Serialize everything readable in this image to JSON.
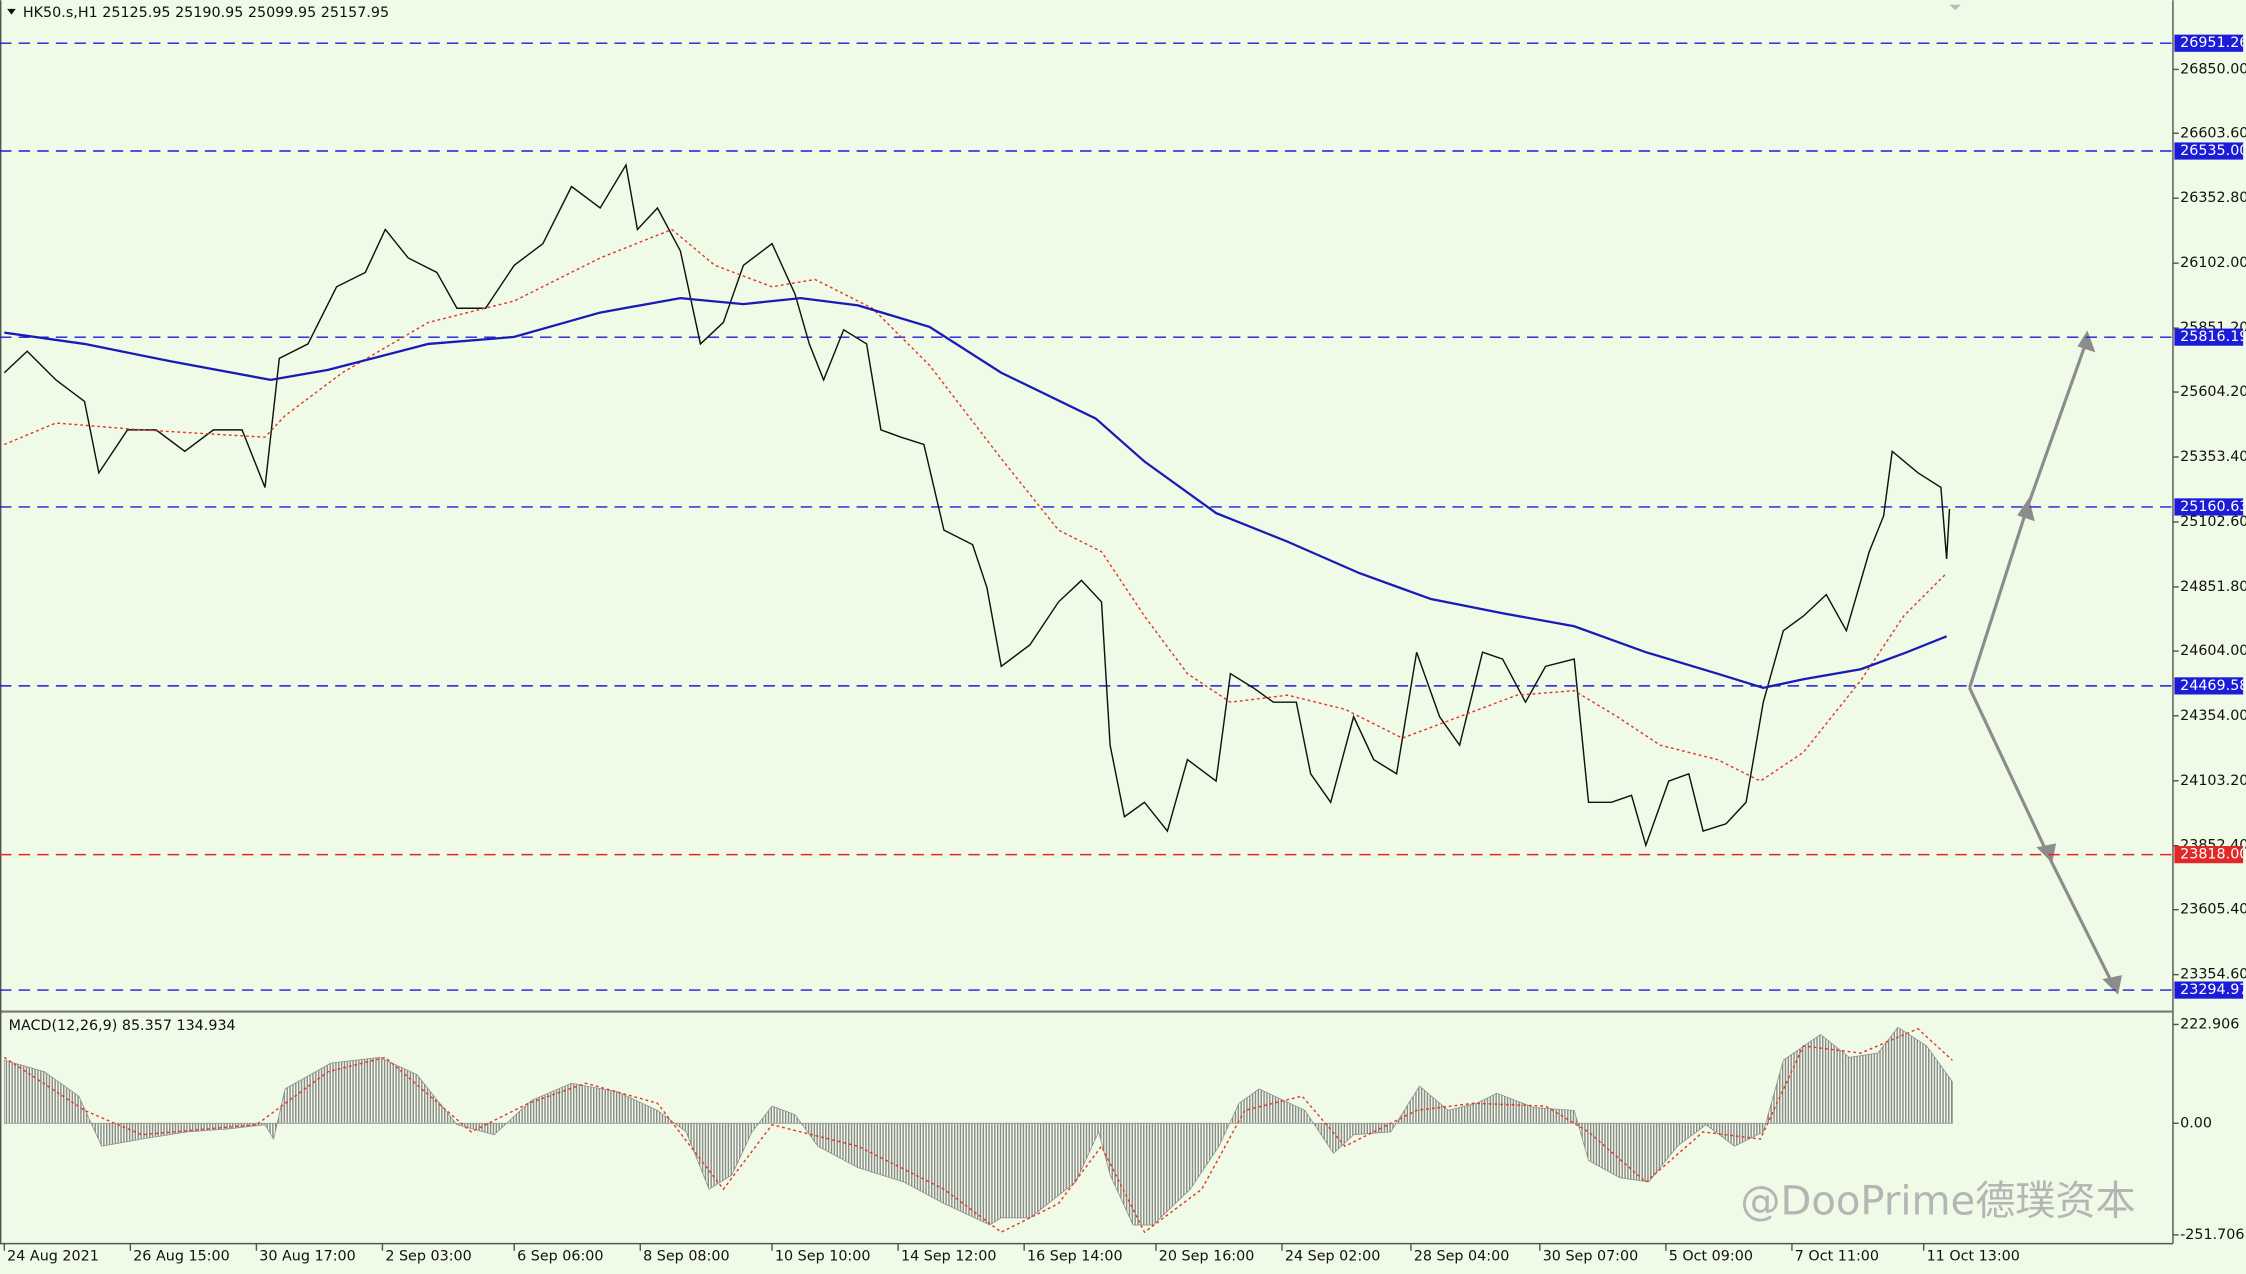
{
  "chart_data": [
    {
      "type": "line",
      "title": "HK50.s,H1  25125.95 25190.95 25099.95 25157.95",
      "watermark": "@DooPrime德璞资本",
      "xlim": [
        -1.5,
        757
      ],
      "ylim": [
        23212,
        27117
      ],
      "xticks": [
        {
          "value": 0,
          "label": "24 Aug 2021"
        },
        {
          "value": 44,
          "label": "26 Aug 15:00"
        },
        {
          "value": 88,
          "label": "30 Aug 17:00"
        },
        {
          "value": 132,
          "label": "2 Sep 03:00"
        },
        {
          "value": 178,
          "label": "6 Sep 06:00"
        },
        {
          "value": 222,
          "label": "8 Sep 08:00"
        },
        {
          "value": 268,
          "label": "10 Sep 10:00"
        },
        {
          "value": 312,
          "label": "14 Sep 12:00"
        },
        {
          "value": 356,
          "label": "16 Sep 14:00"
        },
        {
          "value": 402,
          "label": "20 Sep 16:00"
        },
        {
          "value": 446,
          "label": "24 Sep 02:00"
        },
        {
          "value": 491,
          "label": "28 Sep 04:00"
        },
        {
          "value": 536,
          "label": "30 Sep 07:00"
        },
        {
          "value": 580,
          "label": "5 Oct 09:00"
        },
        {
          "value": 624,
          "label": "7 Oct 11:00"
        },
        {
          "value": 670,
          "label": "11 Oct 13:00"
        }
      ],
      "yticks": [
        {
          "value": 26850,
          "label": "26850.00"
        },
        {
          "value": 26603.6,
          "label": "26603.60"
        },
        {
          "value": 26352.8,
          "label": "26352.80"
        },
        {
          "value": 26102,
          "label": "26102.00"
        },
        {
          "value": 25851.2,
          "label": "25851.20"
        },
        {
          "value": 25604.2,
          "label": "25604.20"
        },
        {
          "value": 25353.4,
          "label": "25353.40"
        },
        {
          "value": 25102.6,
          "label": "25102.60"
        },
        {
          "value": 24851.8,
          "label": "24851.80"
        },
        {
          "value": 24604,
          "label": "24604.00"
        },
        {
          "value": 24354,
          "label": "24354.00"
        },
        {
          "value": 24103.2,
          "label": "24103.20"
        },
        {
          "value": 23852.4,
          "label": "23852.40"
        },
        {
          "value": 23605.4,
          "label": "23605.40"
        },
        {
          "value": 23354.6,
          "label": "23354.60"
        }
      ],
      "levels": [
        {
          "value": 26951.26,
          "color": "#1c1cd8"
        },
        {
          "value": 26535,
          "label": "26535.00",
          "color": "#1c1cd8"
        },
        {
          "value": 25816.19,
          "color": "#1c1cd8"
        },
        {
          "value": 25160.63,
          "color": "#1c1cd8"
        },
        {
          "value": 24469.58,
          "color": "#1c1cd8"
        },
        {
          "value": 23818,
          "label": "23818.00",
          "color": "#e02828"
        },
        {
          "value": 23294.97,
          "color": "#1c1cd8"
        }
      ],
      "series": [
        {
          "type": "line",
          "color": "#111111",
          "x": [
            0,
            8,
            18,
            28,
            33,
            43,
            53,
            63,
            73,
            83,
            91,
            96,
            106,
            116,
            126,
            133,
            141,
            151,
            158,
            168,
            178,
            188,
            198,
            208,
            217,
            221,
            228,
            236,
            243,
            251,
            258,
            268,
            276,
            281,
            286,
            293,
            301,
            306,
            313,
            321,
            328,
            338,
            343,
            348,
            358,
            368,
            376,
            383,
            386,
            391,
            398,
            406,
            413,
            423,
            428,
            436,
            443,
            451,
            456,
            463,
            471,
            478,
            486,
            493,
            501,
            508,
            516,
            523,
            531,
            538,
            548,
            553,
            561,
            568,
            573,
            581,
            588,
            593,
            601,
            608,
            614,
            621,
            628,
            636,
            643,
            651,
            656,
            659,
            668,
            676,
            678,
            679
          ],
          "values": [
            25679,
            25762,
            25651,
            25568,
            25292,
            25458,
            25458,
            25375,
            25458,
            25458,
            25236,
            25734,
            25790,
            26011,
            26066,
            26232,
            26122,
            26066,
            25928,
            25928,
            26094,
            26177,
            26398,
            26315,
            26481,
            26232,
            26315,
            26149,
            25790,
            25873,
            26094,
            26177,
            25983,
            25790,
            25651,
            25845,
            25790,
            25458,
            25430,
            25402,
            25071,
            25015,
            24849,
            24545,
            24628,
            24794,
            24877,
            24794,
            24241,
            23964,
            24020,
            23909,
            24185,
            24102,
            24517,
            24462,
            24407,
            24407,
            24130,
            24020,
            24351,
            24185,
            24130,
            24600,
            24351,
            24241,
            24600,
            24573,
            24407,
            24545,
            24573,
            24020,
            24020,
            24047,
            23854,
            24102,
            24130,
            23909,
            23937,
            24020,
            24407,
            24683,
            24739,
            24822,
            24683,
            24988,
            25126,
            25375,
            25292,
            25236,
            24960,
            25153
          ]
        },
        {
          "type": "line",
          "color": "#e23a2a",
          "style": "dotted",
          "x": [
            0,
            18,
            48,
            91,
            98,
            118,
            148,
            178,
            208,
            233,
            248,
            268,
            283,
            303,
            323,
            348,
            368,
            383,
            398,
            413,
            428,
            448,
            468,
            488,
            508,
            528,
            548,
            563,
            578,
            598,
            613,
            628,
            648,
            663,
            678
          ],
          "values": [
            25402,
            25485,
            25458,
            25430,
            25513,
            25679,
            25873,
            25956,
            26122,
            26232,
            26094,
            26011,
            26039,
            25928,
            25707,
            25347,
            25071,
            24988,
            24739,
            24517,
            24407,
            24434,
            24379,
            24268,
            24351,
            24434,
            24451,
            24351,
            24241,
            24185,
            24102,
            24213,
            24490,
            24739,
            24905
          ]
        },
        {
          "type": "line",
          "color": "#1a1ab8",
          "width": 1.6,
          "x": [
            0,
            28,
            58,
            93,
            113,
            148,
            178,
            208,
            236,
            258,
            278,
            298,
            323,
            348,
            381,
            398,
            423,
            448,
            473,
            498,
            523,
            548,
            573,
            598,
            614,
            628,
            648,
            663,
            678
          ],
          "values": [
            25834,
            25790,
            25723,
            25651,
            25690,
            25790,
            25817,
            25911,
            25967,
            25944,
            25967,
            25939,
            25856,
            25679,
            25502,
            25336,
            25137,
            25026,
            24905,
            24805,
            24750,
            24700,
            24600,
            24517,
            24462,
            24495,
            24534,
            24595,
            24661
          ]
        }
      ]
    },
    {
      "type": "line",
      "title": "MACD(12,26,9) 85.357 134.934",
      "ylim": [
        -271.4,
        245.5
      ],
      "yticks": [
        222.906,
        {
          "value": 0,
          "label": "0.00"
        },
        -251.706
      ],
      "series": [
        {
          "type": "area",
          "color": "#8a8a8a",
          "x": [
            0,
            14,
            26,
            34,
            48,
            64,
            78,
            91,
            94,
            98,
            114,
            131,
            144,
            158,
            171,
            184,
            198,
            214,
            228,
            238,
            246,
            254,
            261,
            268,
            276,
            284,
            298,
            314,
            328,
            344,
            348,
            358,
            374,
            382,
            386,
            394,
            401,
            414,
            424,
            431,
            438,
            454,
            464,
            471,
            484,
            494,
            504,
            514,
            521,
            534,
            548,
            553,
            564,
            574,
            584,
            594,
            604,
            614,
            621,
            634,
            644,
            654,
            661,
            671,
            680
          ],
          "values": [
            142.2,
            116.3,
            61.4,
            -51.7,
            -35.5,
            -19.4,
            -12.9,
            -3.2,
            -35.5,
            77.5,
            135.7,
            148.6,
            109.9,
            -3.2,
            -25.8,
            51.7,
            90.5,
            71.1,
            29.1,
            -19.4,
            -148.6,
            -116.3,
            -19.4,
            38.8,
            19.4,
            -51.7,
            -100.2,
            -132.5,
            -180.9,
            -229.4,
            -213.2,
            -213.2,
            -132.5,
            -19.4,
            -116.3,
            -229.4,
            -229.4,
            -148.6,
            -51.7,
            45.2,
            77.5,
            29.1,
            -67.9,
            -25.8,
            -19.4,
            84,
            29.1,
            45.2,
            67.9,
            35.5,
            29.1,
            -84,
            -122.8,
            -132.5,
            -51.7,
            -3.2,
            -51.7,
            -19.4,
            142.2,
            200.3,
            148.6,
            158.3,
            216.5,
            174.5,
            93.7
          ]
        },
        {
          "type": "line",
          "color": "#e23a2a",
          "style": "dotted",
          "x": [
            0,
            28,
            48,
            88,
            113,
            133,
            163,
            183,
            203,
            228,
            251,
            268,
            298,
            328,
            348,
            368,
            383,
            398,
            418,
            433,
            453,
            468,
            493,
            513,
            538,
            553,
            573,
            593,
            613,
            628,
            648,
            668,
            680
          ],
          "values": [
            148.6,
            29.1,
            -25.8,
            -3.2,
            116.3,
            148.6,
            -19.4,
            45.2,
            90.5,
            45.2,
            -148.6,
            -3.2,
            -51.7,
            -148.6,
            -245.6,
            -180.9,
            -51.7,
            -245.6,
            -148.6,
            29.1,
            61.4,
            -51.7,
            29.1,
            45.2,
            38.8,
            -19.4,
            -132.5,
            -19.4,
            -35.5,
            174.5,
            158.3,
            213.2,
            142.2
          ]
        }
      ]
    }
  ]
}
